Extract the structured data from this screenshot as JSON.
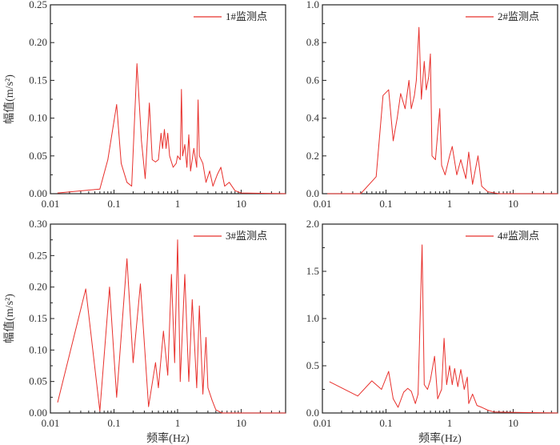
{
  "chart_data": [
    {
      "type": "line",
      "legend": "1#监测点",
      "xlabel": "",
      "ylabel": "幅值(m/s²)",
      "xscale": "log",
      "xlim": [
        0.01,
        50
      ],
      "ylim": [
        0,
        0.25
      ],
      "xticks": [
        "0.01",
        "0.1",
        "1",
        "10"
      ],
      "yticks": [
        "0.00",
        "0.05",
        "0.10",
        "0.15",
        "0.20",
        "0.25"
      ],
      "legend_position": "top-right",
      "color": "#e8302c",
      "series": [
        {
          "x": [
            0.013,
            0.06,
            0.08,
            0.11,
            0.13,
            0.16,
            0.19,
            0.23,
            0.27,
            0.31,
            0.36,
            0.4,
            0.45,
            0.5,
            0.55,
            0.58,
            0.62,
            0.66,
            0.7,
            0.75,
            0.85,
            0.95,
            1.0,
            1.1,
            1.15,
            1.2,
            1.3,
            1.4,
            1.5,
            1.6,
            1.8,
            2.0,
            2.1,
            2.2,
            2.5,
            2.8,
            3.2,
            3.6,
            4.2,
            4.8,
            5.5,
            6.5,
            8,
            10,
            50
          ],
          "y": [
            0.001,
            0.006,
            0.045,
            0.118,
            0.04,
            0.015,
            0.01,
            0.172,
            0.07,
            0.02,
            0.12,
            0.045,
            0.042,
            0.045,
            0.08,
            0.06,
            0.085,
            0.06,
            0.08,
            0.05,
            0.035,
            0.04,
            0.05,
            0.045,
            0.138,
            0.05,
            0.065,
            0.035,
            0.078,
            0.03,
            0.06,
            0.035,
            0.124,
            0.05,
            0.04,
            0.015,
            0.03,
            0.01,
            0.025,
            0.035,
            0.01,
            0.015,
            0.004,
            0.001,
            0
          ]
        }
      ]
    },
    {
      "type": "line",
      "legend": "2#监测点",
      "xlabel": "",
      "ylabel": "",
      "xscale": "log",
      "xlim": [
        0.01,
        50
      ],
      "ylim": [
        0,
        1.0
      ],
      "xticks": [
        "0.01",
        "0.1",
        "1",
        "10"
      ],
      "yticks": [
        "0.0",
        "0.2",
        "0.4",
        "0.6",
        "0.8",
        "1.0"
      ],
      "legend_position": "top-right",
      "color": "#e8302c",
      "series": [
        {
          "x": [
            0.012,
            0.04,
            0.07,
            0.09,
            0.11,
            0.13,
            0.15,
            0.17,
            0.2,
            0.23,
            0.25,
            0.28,
            0.3,
            0.33,
            0.36,
            0.4,
            0.43,
            0.47,
            0.5,
            0.53,
            0.6,
            0.7,
            0.75,
            0.85,
            1.0,
            1.1,
            1.3,
            1.5,
            1.8,
            2.0,
            2.3,
            2.8,
            3.2,
            4,
            6,
            50
          ],
          "y": [
            0,
            0,
            0.09,
            0.52,
            0.55,
            0.28,
            0.4,
            0.53,
            0.45,
            0.6,
            0.45,
            0.52,
            0.6,
            0.88,
            0.5,
            0.7,
            0.55,
            0.62,
            0.74,
            0.2,
            0.18,
            0.45,
            0.15,
            0.1,
            0.2,
            0.25,
            0.1,
            0.18,
            0.08,
            0.22,
            0.05,
            0.2,
            0.04,
            0.01,
            0,
            0
          ]
        }
      ]
    },
    {
      "type": "line",
      "legend": "3#监测点",
      "xlabel": "频率(Hz)",
      "ylabel": "幅值(m/s²)",
      "xscale": "log",
      "xlim": [
        0.01,
        50
      ],
      "ylim": [
        0,
        0.3
      ],
      "xticks": [
        "0.01",
        "0.1",
        "1",
        "10"
      ],
      "yticks": [
        "0.00",
        "0.05",
        "0.10",
        "0.15",
        "0.20",
        "0.25",
        "0.30"
      ],
      "legend_position": "top-right",
      "color": "#e8302c",
      "series": [
        {
          "x": [
            0.013,
            0.036,
            0.06,
            0.085,
            0.11,
            0.16,
            0.2,
            0.26,
            0.35,
            0.45,
            0.5,
            0.6,
            0.7,
            0.8,
            0.9,
            1.0,
            1.1,
            1.3,
            1.5,
            1.7,
            2.0,
            2.2,
            2.5,
            2.8,
            3.0,
            3.5,
            4,
            5,
            50
          ],
          "y": [
            0.017,
            0.197,
            0.003,
            0.2,
            0.025,
            0.245,
            0.08,
            0.205,
            0.01,
            0.08,
            0.04,
            0.13,
            0.06,
            0.22,
            0.08,
            0.275,
            0.05,
            0.22,
            0.05,
            0.18,
            0.04,
            0.17,
            0.03,
            0.12,
            0.04,
            0.02,
            0.005,
            0,
            0
          ]
        }
      ]
    },
    {
      "type": "line",
      "legend": "4#监测点",
      "xlabel": "频率(Hz)",
      "ylabel": "",
      "xscale": "log",
      "xlim": [
        0.01,
        50
      ],
      "ylim": [
        0,
        2.0
      ],
      "xticks": [
        "0.01",
        "0.1",
        "1",
        "10"
      ],
      "yticks": [
        "0.0",
        "0.5",
        "1.0",
        "1.5",
        "2.0"
      ],
      "legend_position": "top-right",
      "color": "#e8302c",
      "series": [
        {
          "x": [
            0.013,
            0.036,
            0.06,
            0.085,
            0.11,
            0.13,
            0.155,
            0.19,
            0.22,
            0.25,
            0.29,
            0.32,
            0.37,
            0.4,
            0.45,
            0.5,
            0.58,
            0.65,
            0.75,
            0.82,
            0.9,
            1.0,
            1.1,
            1.2,
            1.35,
            1.5,
            1.7,
            1.9,
            2.0,
            2.3,
            2.7,
            3.2,
            4,
            5,
            50
          ],
          "y": [
            0.33,
            0.18,
            0.34,
            0.25,
            0.44,
            0.15,
            0.06,
            0.22,
            0.26,
            0.23,
            0.1,
            0.2,
            1.78,
            0.3,
            0.25,
            0.35,
            0.6,
            0.15,
            0.25,
            0.79,
            0.3,
            0.5,
            0.3,
            0.47,
            0.28,
            0.46,
            0.25,
            0.38,
            0.1,
            0.2,
            0.08,
            0.06,
            0.03,
            0.01,
            0
          ]
        }
      ]
    }
  ]
}
